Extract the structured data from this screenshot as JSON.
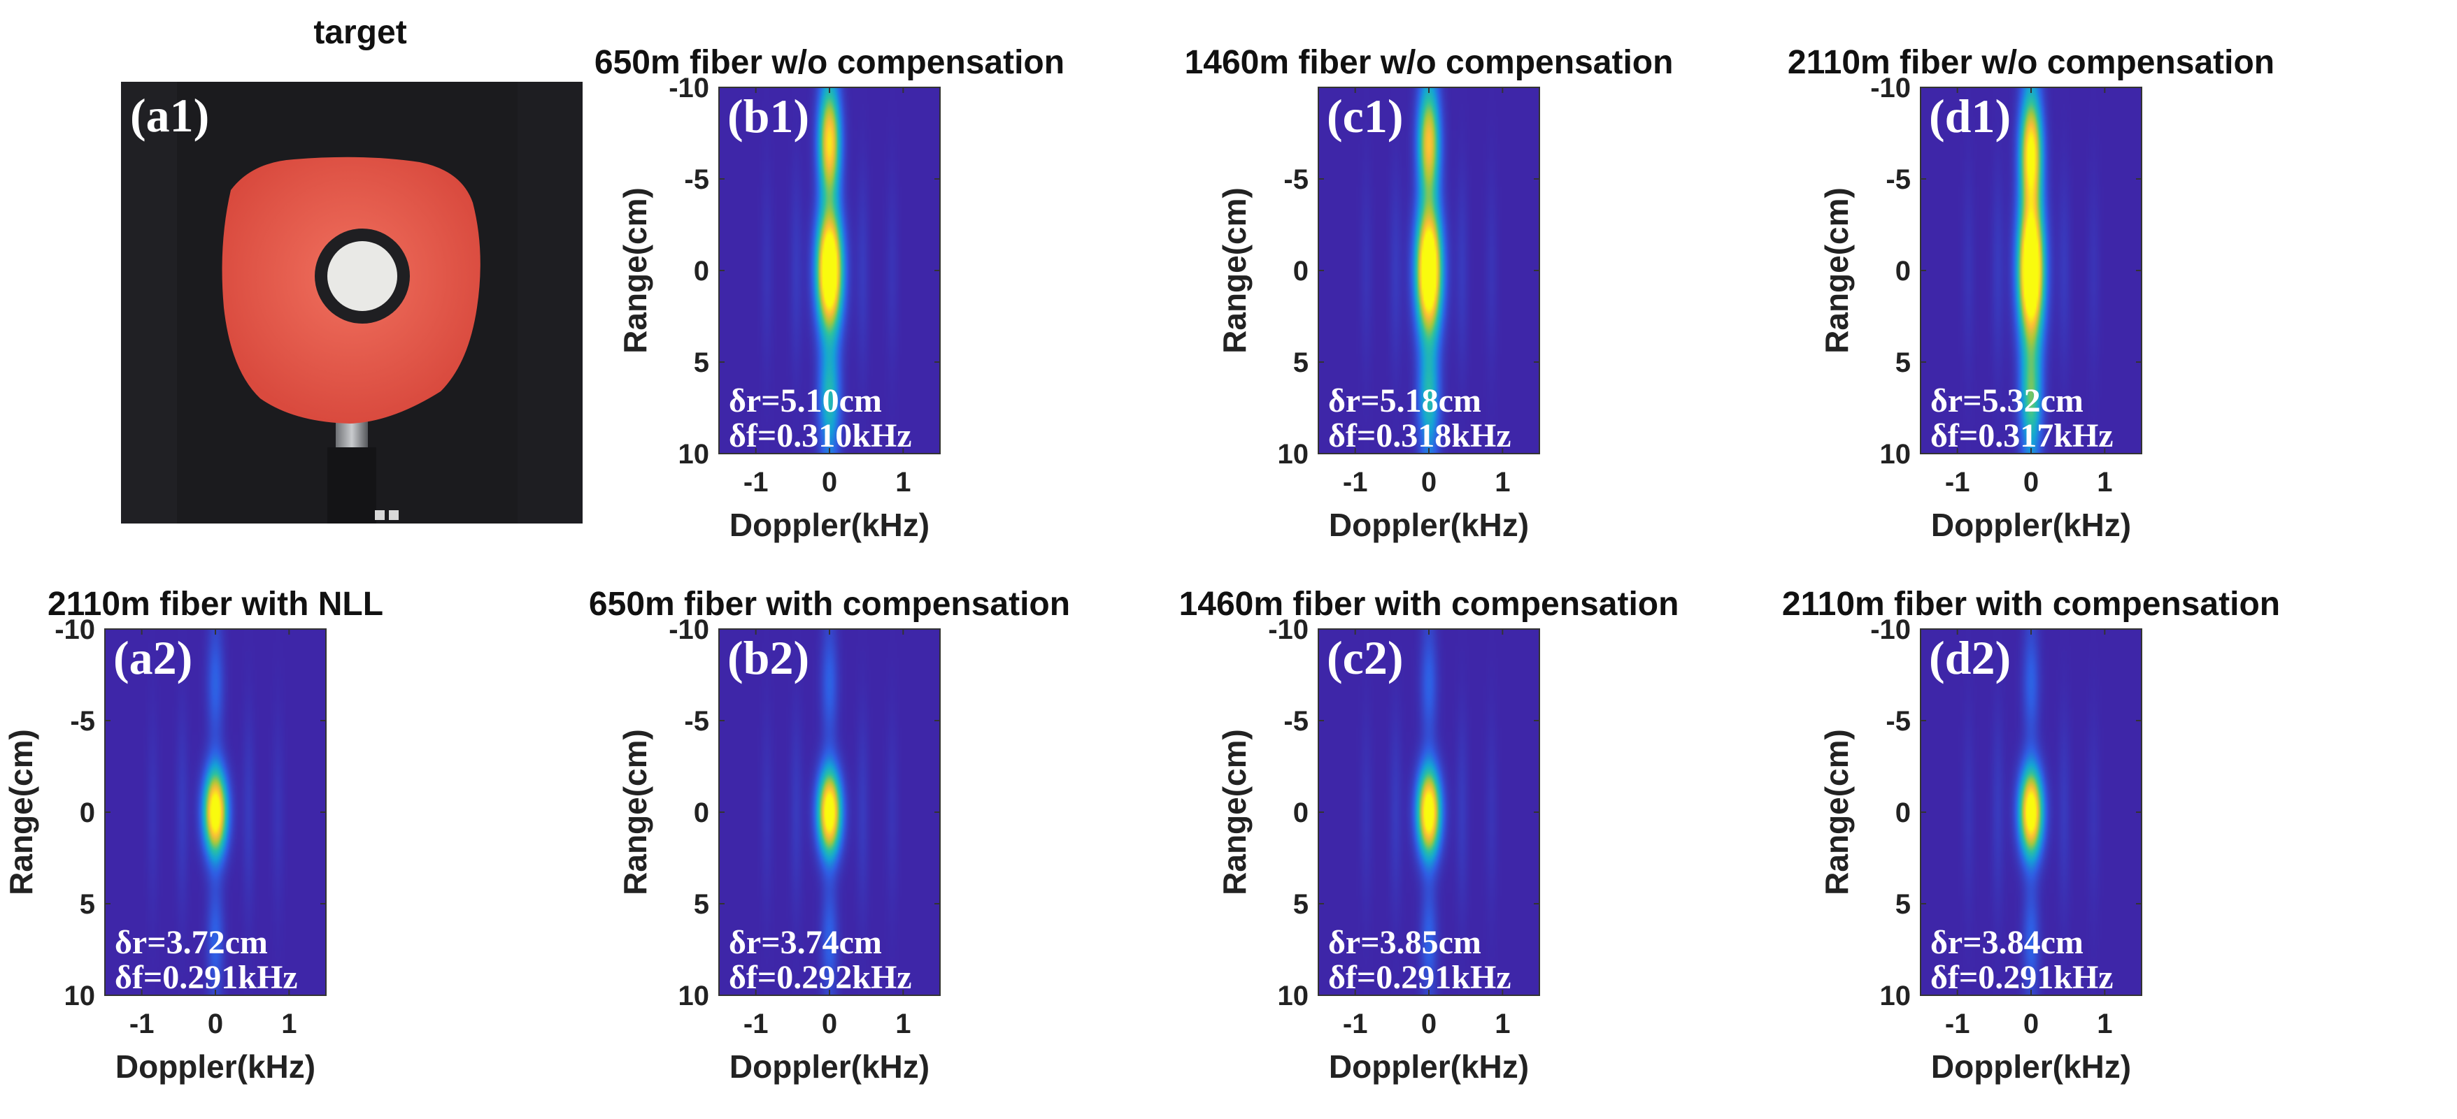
{
  "photo": {
    "title": "target",
    "label": "(a1)",
    "alt": "Photograph of target: red disk with black ring and white center mounted on a post"
  },
  "chart_data": [
    {
      "id": "b1",
      "type": "heatmap",
      "label": "(b1)",
      "title": "650m fiber w/o compensation",
      "xlabel": "Doppler(kHz)",
      "ylabel": "Range(cm)",
      "xlim": [
        -1.5,
        1.5
      ],
      "ylim": [
        -10,
        10
      ],
      "xticks": [
        "-1",
        "0",
        "1"
      ],
      "yticks": [
        "-10",
        "-5",
        "0",
        "5",
        "10"
      ],
      "annotation": {
        "dr": "δr=5.10cm",
        "df": "δf=0.310kHz"
      },
      "peak": {
        "doppler_khz": 0,
        "range_cm": 0,
        "sigma_doppler_khz": 0.12,
        "sigma_range_cm": 2.2,
        "amplitude": 1.0
      },
      "streak": {
        "sigma_doppler_khz": 0.1,
        "amplitude": 0.45
      },
      "secondary_lobes": [
        {
          "doppler_khz": 0,
          "range_cm": -7,
          "amplitude": 0.5
        }
      ]
    },
    {
      "id": "c1",
      "type": "heatmap",
      "label": "(c1)",
      "title": "1460m fiber w/o compensation",
      "xlabel": "Doppler(kHz)",
      "ylabel": "Range(cm)",
      "xlim": [
        -1.5,
        1.5
      ],
      "ylim": [
        -10,
        10
      ],
      "xticks": [
        "-1",
        "0",
        "1"
      ],
      "yticks": [
        "-5",
        "0",
        "5",
        "10"
      ],
      "annotation": {
        "dr": "δr=5.18cm",
        "df": "δf=0.318kHz"
      },
      "peak": {
        "doppler_khz": 0,
        "range_cm": 0,
        "sigma_doppler_khz": 0.12,
        "sigma_range_cm": 2.4,
        "amplitude": 1.0
      },
      "streak": {
        "sigma_doppler_khz": 0.1,
        "amplitude": 0.45
      },
      "secondary_lobes": [
        {
          "doppler_khz": 0,
          "range_cm": -7,
          "amplitude": 0.4
        }
      ]
    },
    {
      "id": "d1",
      "type": "heatmap",
      "label": "(d1)",
      "title": "2110m fiber w/o compensation",
      "xlabel": "Doppler(kHz)",
      "ylabel": "Range(cm)",
      "xlim": [
        -1.5,
        1.5
      ],
      "ylim": [
        -10,
        10
      ],
      "xticks": [
        "-1",
        "0",
        "1"
      ],
      "yticks": [
        "-10",
        "-5",
        "0",
        "5",
        "10"
      ],
      "annotation": {
        "dr": "δr=5.32cm",
        "df": "δf=0.317kHz"
      },
      "peak": {
        "doppler_khz": 0,
        "range_cm": 0,
        "sigma_doppler_khz": 0.12,
        "sigma_range_cm": 2.8,
        "amplitude": 1.0
      },
      "streak": {
        "sigma_doppler_khz": 0.1,
        "amplitude": 0.55
      },
      "secondary_lobes": [
        {
          "doppler_khz": 0,
          "range_cm": -6,
          "amplitude": 0.5
        }
      ]
    },
    {
      "id": "a2",
      "type": "heatmap",
      "label": "(a2)",
      "title": "2110m fiber with NLL",
      "xlabel": "Doppler(kHz)",
      "ylabel": "Range(cm)",
      "xlim": [
        -1.5,
        1.5
      ],
      "ylim": [
        -10,
        10
      ],
      "xticks": [
        "-1",
        "0",
        "1"
      ],
      "yticks": [
        "-10",
        "-5",
        "0",
        "5",
        "10"
      ],
      "annotation": {
        "dr": "δr=3.72cm",
        "df": "δf=0.291kHz"
      },
      "peak": {
        "doppler_khz": 0,
        "range_cm": 0,
        "sigma_doppler_khz": 0.11,
        "sigma_range_cm": 1.5,
        "amplitude": 1.0
      },
      "streak": {
        "sigma_doppler_khz": 0.08,
        "amplitude": 0.18
      },
      "secondary_lobes": []
    },
    {
      "id": "b2",
      "type": "heatmap",
      "label": "(b2)",
      "title": "650m fiber with compensation",
      "xlabel": "Doppler(kHz)",
      "ylabel": "Range(cm)",
      "xlim": [
        -1.5,
        1.5
      ],
      "ylim": [
        -10,
        10
      ],
      "xticks": [
        "-1",
        "0",
        "1"
      ],
      "yticks": [
        "-10",
        "-5",
        "0",
        "5",
        "10"
      ],
      "annotation": {
        "dr": "δr=3.74cm",
        "df": "δf=0.292kHz"
      },
      "peak": {
        "doppler_khz": 0,
        "range_cm": 0,
        "sigma_doppler_khz": 0.11,
        "sigma_range_cm": 1.5,
        "amplitude": 1.0
      },
      "streak": {
        "sigma_doppler_khz": 0.08,
        "amplitude": 0.18
      },
      "secondary_lobes": []
    },
    {
      "id": "c2",
      "type": "heatmap",
      "label": "(c2)",
      "title": "1460m fiber with compensation",
      "xlabel": "Doppler(kHz)",
      "ylabel": "Range(cm)",
      "xlim": [
        -1.5,
        1.5
      ],
      "ylim": [
        -10,
        10
      ],
      "xticks": [
        "-1",
        "0",
        "1"
      ],
      "yticks": [
        "-10",
        "-5",
        "0",
        "5",
        "10"
      ],
      "annotation": {
        "dr": "δr=3.85cm",
        "df": "δf=0.291kHz"
      },
      "peak": {
        "doppler_khz": 0,
        "range_cm": 0,
        "sigma_doppler_khz": 0.11,
        "sigma_range_cm": 1.55,
        "amplitude": 1.0
      },
      "streak": {
        "sigma_doppler_khz": 0.08,
        "amplitude": 0.18
      },
      "secondary_lobes": []
    },
    {
      "id": "d2",
      "type": "heatmap",
      "label": "(d2)",
      "title": "2110m fiber with compensation",
      "xlabel": "Doppler(kHz)",
      "ylabel": "Range(cm)",
      "xlim": [
        -1.5,
        1.5
      ],
      "ylim": [
        -10,
        10
      ],
      "xticks": [
        "-1",
        "0",
        "1"
      ],
      "yticks": [
        "-10",
        "-5",
        "0",
        "5",
        "10"
      ],
      "annotation": {
        "dr": "δr=3.84cm",
        "df": "δf=0.291kHz"
      },
      "peak": {
        "doppler_khz": 0,
        "range_cm": 0,
        "sigma_doppler_khz": 0.11,
        "sigma_range_cm": 1.55,
        "amplitude": 1.0
      },
      "streak": {
        "sigma_doppler_khz": 0.08,
        "amplitude": 0.18
      },
      "secondary_lobes": []
    }
  ],
  "colors": {
    "background": "#3a2fb0",
    "colormap": [
      "#3e26a8",
      "#2f5ee4",
      "#14a2d8",
      "#2cc2a0",
      "#a8c83a",
      "#fdbc38",
      "#f9fb0e"
    ],
    "photo_backdrop": "#1b1b1e",
    "photo_disk": "#e8584a"
  }
}
